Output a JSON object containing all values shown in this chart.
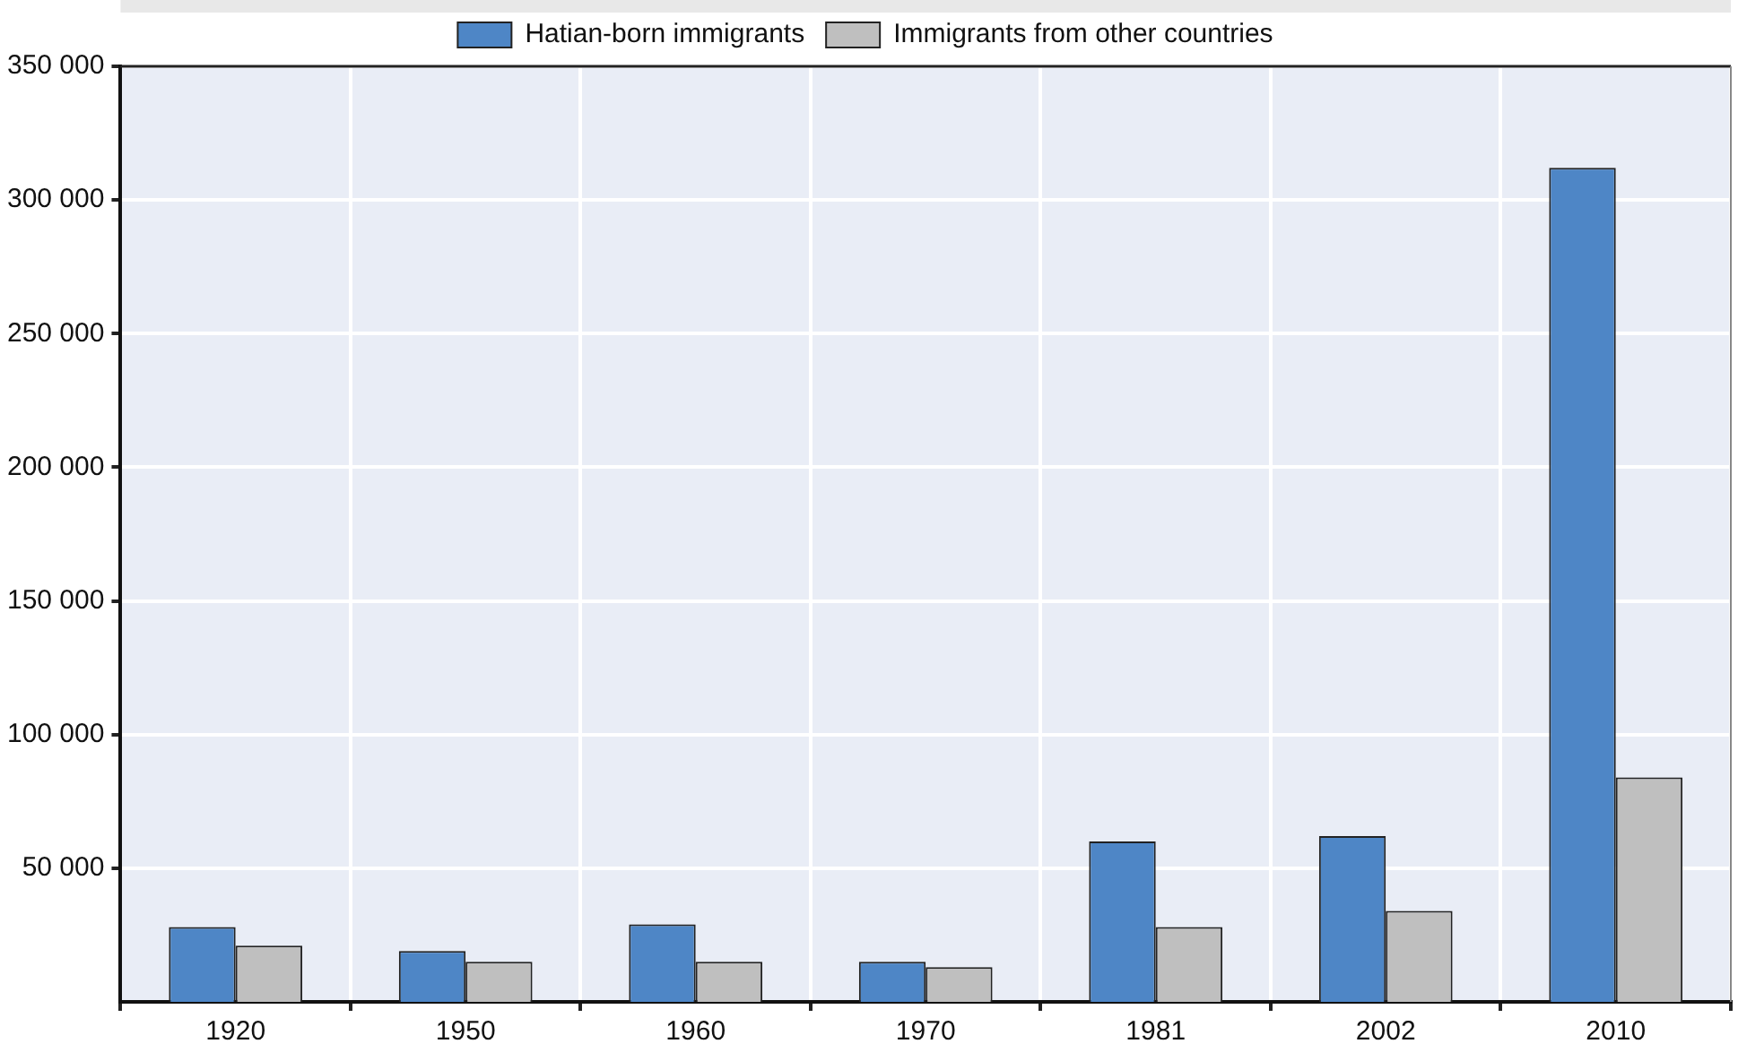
{
  "chart_data": {
    "type": "bar",
    "categories": [
      "1920",
      "1950",
      "1960",
      "1970",
      "1981",
      "2002",
      "2010"
    ],
    "series": [
      {
        "name": "Hatian-born immigrants",
        "color": "#4e86c6",
        "values": [
          28000,
          19000,
          29000,
          15000,
          60000,
          62000,
          312000
        ]
      },
      {
        "name": "Immigrants from other countries",
        "color": "#bfbfbf",
        "values": [
          21000,
          15000,
          15000,
          13000,
          28000,
          34000,
          84000
        ]
      }
    ],
    "ylim": [
      0,
      350000
    ],
    "yticks": [
      {
        "value": 50000,
        "label": "50 000"
      },
      {
        "value": 100000,
        "label": "100 000"
      },
      {
        "value": 150000,
        "label": "150 000"
      },
      {
        "value": 200000,
        "label": "200 000"
      },
      {
        "value": 250000,
        "label": "250 000"
      },
      {
        "value": 300000,
        "label": "300 000"
      },
      {
        "value": 350000,
        "label": "350 000"
      }
    ],
    "grid": true,
    "legend": "top"
  }
}
